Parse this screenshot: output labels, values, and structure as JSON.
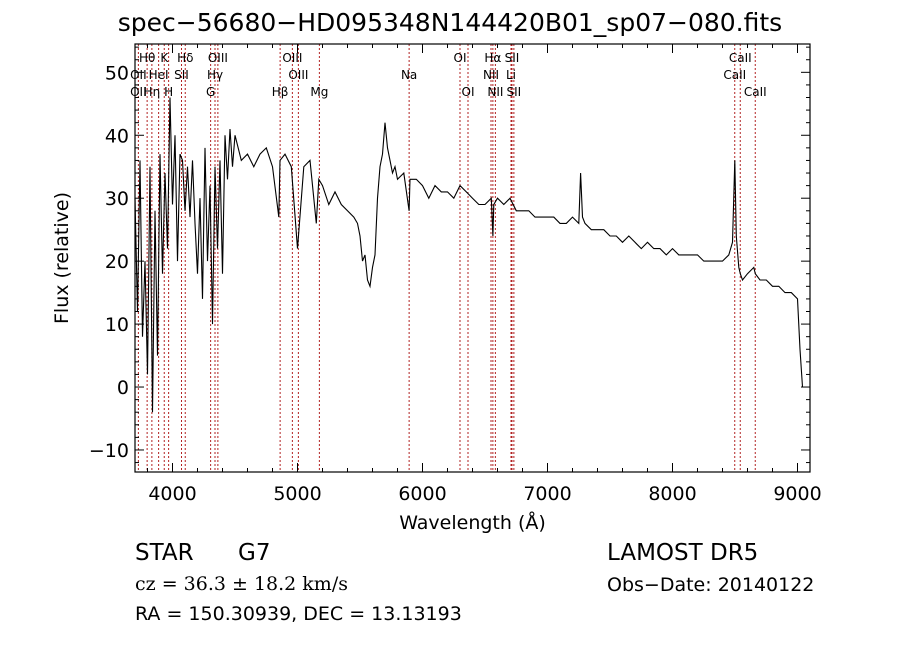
{
  "chart_data": {
    "type": "line",
    "title": "spec−56680−HD095348N144420B01_sp07−080.fits",
    "xlabel": "Wavelength (Å)",
    "ylabel": "Flux (relative)",
    "xlim": [
      3700,
      9100
    ],
    "ylim": [
      -13.5,
      54.5
    ],
    "xticks": [
      4000,
      5000,
      6000,
      7000,
      8000,
      9000
    ],
    "yticks": [
      -10,
      0,
      10,
      20,
      30,
      40,
      50
    ],
    "xtick_labels": [
      "4000",
      "5000",
      "6000",
      "7000",
      "8000",
      "9000"
    ],
    "ytick_labels": [
      "−10",
      "0",
      "10",
      "20",
      "30",
      "40",
      "50"
    ],
    "grid": false,
    "spectrum": {
      "x": [
        3700,
        3720,
        3740,
        3760,
        3780,
        3800,
        3820,
        3840,
        3860,
        3880,
        3900,
        3920,
        3940,
        3960,
        3980,
        4000,
        4020,
        4040,
        4060,
        4080,
        4100,
        4120,
        4140,
        4160,
        4180,
        4200,
        4220,
        4240,
        4260,
        4280,
        4300,
        4320,
        4340,
        4360,
        4380,
        4400,
        4420,
        4440,
        4460,
        4480,
        4500,
        4550,
        4600,
        4650,
        4700,
        4750,
        4800,
        4850,
        4860,
        4900,
        4950,
        5000,
        5050,
        5100,
        5150,
        5170,
        5200,
        5250,
        5300,
        5350,
        5400,
        5450,
        5480,
        5500,
        5520,
        5540,
        5560,
        5580,
        5600,
        5620,
        5640,
        5660,
        5680,
        5700,
        5720,
        5740,
        5760,
        5780,
        5800,
        5850,
        5893,
        5900,
        5950,
        6000,
        6050,
        6100,
        6150,
        6200,
        6250,
        6300,
        6350,
        6400,
        6450,
        6500,
        6550,
        6563,
        6570,
        6600,
        6650,
        6700,
        6750,
        6800,
        6850,
        6900,
        6950,
        7000,
        7050,
        7100,
        7150,
        7200,
        7250,
        7265,
        7280,
        7300,
        7350,
        7400,
        7450,
        7500,
        7550,
        7600,
        7650,
        7700,
        7750,
        7800,
        7850,
        7900,
        7950,
        8000,
        8050,
        8100,
        8150,
        8200,
        8250,
        8300,
        8350,
        8400,
        8450,
        8480,
        8498,
        8510,
        8530,
        8542,
        8560,
        8600,
        8650,
        8662,
        8700,
        8750,
        8800,
        8850,
        8900,
        8950,
        9000,
        9020,
        9040
      ],
      "y": [
        30,
        12,
        36,
        8,
        20,
        2,
        35,
        -4,
        28,
        5,
        37,
        18,
        34,
        22,
        46,
        29,
        40,
        20,
        37,
        36,
        28,
        35,
        27,
        36,
        26,
        18,
        30,
        14,
        38,
        20,
        32,
        10,
        35,
        22,
        36,
        18,
        40,
        33,
        41,
        35,
        40,
        36,
        37,
        35,
        37,
        38,
        35,
        27,
        36,
        37,
        35,
        22,
        35,
        36,
        26,
        33,
        32,
        29,
        31,
        29,
        28,
        27,
        26,
        24,
        20,
        21,
        17,
        16,
        19,
        21,
        30,
        35,
        37,
        42,
        38,
        36,
        34,
        35,
        33,
        34,
        28,
        33,
        33,
        32,
        30,
        32,
        31,
        31,
        30,
        32,
        31,
        30,
        29,
        29,
        30,
        24,
        29,
        30,
        29,
        30,
        28,
        28,
        28,
        27,
        27,
        27,
        27,
        26,
        26,
        27,
        26,
        34,
        27,
        26,
        25,
        25,
        25,
        24,
        24,
        23,
        24,
        23,
        22,
        23,
        22,
        22,
        21,
        22,
        21,
        21,
        21,
        21,
        20,
        20,
        20,
        20,
        21,
        23,
        36,
        24,
        19,
        18,
        17,
        18,
        19,
        18,
        17,
        17,
        16,
        16,
        15,
        15,
        14,
        6,
        0
      ]
    },
    "lines": [
      {
        "label": "Hθ",
        "x": 3797,
        "row": 1
      },
      {
        "label": "OII",
        "x": 3727,
        "row": 2
      },
      {
        "label": "OII",
        "x": 3727,
        "row": 3
      },
      {
        "label": "HeI",
        "x": 3889,
        "row": 2
      },
      {
        "label": "Hη",
        "x": 3835,
        "row": 3
      },
      {
        "label": "K",
        "x": 3934,
        "row": 1
      },
      {
        "label": "SII",
        "x": 4072,
        "row": 2
      },
      {
        "label": "H",
        "x": 3969,
        "row": 3
      },
      {
        "label": "Hδ",
        "x": 4102,
        "row": 1
      },
      {
        "label": "OIII",
        "x": 4363,
        "row": 1
      },
      {
        "label": "Hγ",
        "x": 4340,
        "row": 2
      },
      {
        "label": "G",
        "x": 4305,
        "row": 3
      },
      {
        "label": "OIII",
        "x": 4959,
        "row": 1
      },
      {
        "label": "OIII",
        "x": 5007,
        "row": 2
      },
      {
        "label": "Hβ",
        "x": 4861,
        "row": 3
      },
      {
        "label": "Mg",
        "x": 5175,
        "row": 3
      },
      {
        "label": "Na",
        "x": 5893,
        "row": 2
      },
      {
        "label": "OI",
        "x": 6300,
        "row": 1
      },
      {
        "label": "OI",
        "x": 6364,
        "row": 3
      },
      {
        "label": "Hα",
        "x": 6563,
        "row": 1
      },
      {
        "label": "NII",
        "x": 6548,
        "row": 2
      },
      {
        "label": "NII",
        "x": 6583,
        "row": 3
      },
      {
        "label": "SII",
        "x": 6716,
        "row": 1
      },
      {
        "label": "Li",
        "x": 6708,
        "row": 2
      },
      {
        "label": "SII",
        "x": 6731,
        "row": 3
      },
      {
        "label": "CaII",
        "x": 8542,
        "row": 1
      },
      {
        "label": "CaII",
        "x": 8498,
        "row": 2
      },
      {
        "label": "CaII",
        "x": 8662,
        "row": 3
      }
    ]
  },
  "info": {
    "object_type": "STAR",
    "subclass": "G7",
    "survey": "LAMOST  DR5",
    "redshift_text": "cz = 36.3 ± 18.2 km/s",
    "obs_date": "Obs−Date: 20140122",
    "coords": "RA = 150.30939, DEC =  13.13193"
  },
  "colors": {
    "spectrum": "#000000",
    "line_markers": "#b22222",
    "axes": "#000000",
    "background": "#ffffff"
  }
}
